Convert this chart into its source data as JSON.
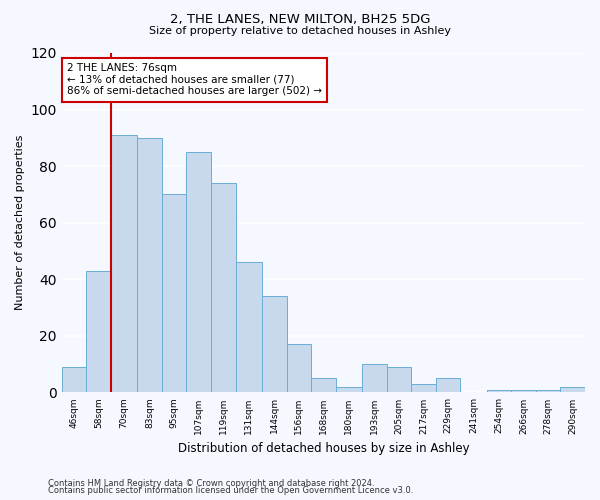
{
  "title": "2, THE LANES, NEW MILTON, BH25 5DG",
  "subtitle": "Size of property relative to detached houses in Ashley",
  "xlabel": "Distribution of detached houses by size in Ashley",
  "ylabel": "Number of detached properties",
  "bar_color": "#c8d9ee",
  "bar_edge_color": "#6aaed6",
  "background_color": "#f5f8ff",
  "plot_bg_color": "#f5f8ff",
  "grid_color": "#ffffff",
  "bin_labels": [
    "46sqm",
    "58sqm",
    "70sqm",
    "83sqm",
    "95sqm",
    "107sqm",
    "119sqm",
    "131sqm",
    "144sqm",
    "156sqm",
    "168sqm",
    "180sqm",
    "193sqm",
    "205sqm",
    "217sqm",
    "229sqm",
    "241sqm",
    "254sqm",
    "266sqm",
    "278sqm",
    "290sqm"
  ],
  "bar_heights": [
    9,
    43,
    91,
    90,
    70,
    85,
    74,
    46,
    34,
    17,
    5,
    2,
    10,
    9,
    3,
    5,
    0,
    1,
    1,
    1,
    2
  ],
  "ylim": [
    0,
    120
  ],
  "yticks": [
    0,
    20,
    40,
    60,
    80,
    100,
    120
  ],
  "vline_color": "#cc0000",
  "annotation_title": "2 THE LANES: 76sqm",
  "annotation_line1": "← 13% of detached houses are smaller (77)",
  "annotation_line2": "86% of semi-detached houses are larger (502) →",
  "annotation_box_edge_color": "#cc0000",
  "footer1": "Contains HM Land Registry data © Crown copyright and database right 2024.",
  "footer2": "Contains public sector information licensed under the Open Government Licence v3.0.",
  "bin_edges": [
    46,
    58,
    70,
    83,
    95,
    107,
    119,
    131,
    144,
    156,
    168,
    180,
    193,
    205,
    217,
    229,
    241,
    254,
    266,
    278,
    290
  ],
  "bin_width": 12
}
